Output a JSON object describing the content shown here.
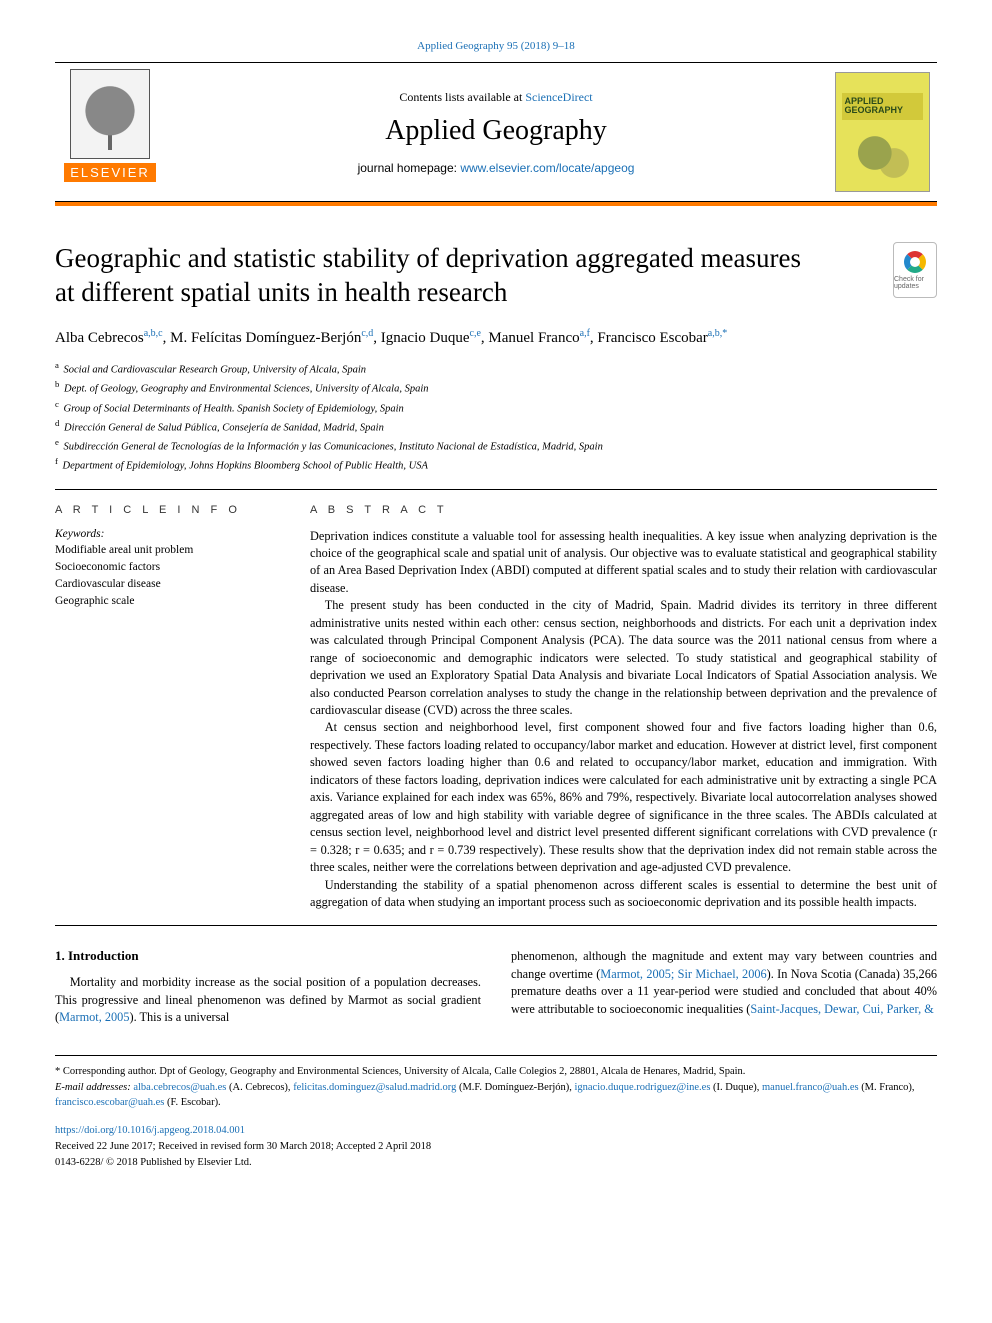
{
  "top": {
    "citation_link_text": "Applied Geography 95 (2018) 9–18",
    "contents_prefix": "Contents lists available at ",
    "contents_link": "ScienceDirect",
    "journal_name": "Applied Geography",
    "homepage_prefix": "journal homepage: ",
    "homepage_link": "www.elsevier.com/locate/apgeog",
    "publisher_word": "ELSEVIER",
    "cover_line1": "APPLIED",
    "cover_line2": "GEOGRAPHY",
    "updates_text": "Check for updates"
  },
  "article": {
    "title": "Geographic and statistic stability of deprivation aggregated measures at different spatial units in health research",
    "authors_html_parts": {
      "a1_name": "Alba Cebrecos",
      "a1_aff": "a,b,c",
      "a2_name": "M. Felícitas Domínguez-Berjón",
      "a2_aff": "c,d",
      "a3_name": "Ignacio Duque",
      "a3_aff": "c,e",
      "a4_name": "Manuel Franco",
      "a4_aff": "a,f",
      "a5_name": "Francisco Escobar",
      "a5_aff": "a,b,*"
    },
    "affiliations": [
      {
        "key": "a",
        "text": "Social and Cardiovascular Research Group, University of Alcala, Spain"
      },
      {
        "key": "b",
        "text": "Dept. of Geology, Geography and Environmental Sciences, University of Alcala, Spain"
      },
      {
        "key": "c",
        "text": "Group of Social Determinants of Health. Spanish Society of Epidemiology, Spain"
      },
      {
        "key": "d",
        "text": "Dirección General de Salud Pública, Consejería de Sanidad, Madrid, Spain"
      },
      {
        "key": "e",
        "text": "Subdirección General de Tecnologías de la Información y las Comunicaciones, Instituto Nacional de Estadística, Madrid, Spain"
      },
      {
        "key": "f",
        "text": "Department of Epidemiology, Johns Hopkins Bloomberg School of Public Health, USA"
      }
    ]
  },
  "sections": {
    "article_info_head": "A R T I C L E  I N F O",
    "abstract_head": "A B S T R A C T",
    "keywords_label": "Keywords:",
    "keywords": [
      "Modifiable areal unit problem",
      "Socioeconomic factors",
      "Cardiovascular disease",
      "Geographic scale"
    ],
    "abstract_paragraphs": [
      "Deprivation indices constitute a valuable tool for assessing health inequalities. A key issue when analyzing deprivation is the choice of the geographical scale and spatial unit of analysis. Our objective was to evaluate statistical and geographical stability of an Area Based Deprivation Index (ABDI) computed at different spatial scales and to study their relation with cardiovascular disease.",
      "The present study has been conducted in the city of Madrid, Spain. Madrid divides its territory in three different administrative units nested within each other: census section, neighborhoods and districts. For each unit a deprivation index was calculated through Principal Component Analysis (PCA). The data source was the 2011 national census from where a range of socioeconomic and demographic indicators were selected. To study statistical and geographical stability of deprivation we used an Exploratory Spatial Data Analysis and bivariate Local Indicators of Spatial Association analysis. We also conducted Pearson correlation analyses to study the change in the relationship between deprivation and the prevalence of cardiovascular disease (CVD) across the three scales.",
      "At census section and neighborhood level, first component showed four and five factors loading higher than 0.6, respectively. These factors loading related to occupancy/labor market and education. However at district level, first component showed seven factors loading higher than 0.6 and related to occupancy/labor market, education and immigration. With indicators of these factors loading, deprivation indices were calculated for each administrative unit by extracting a single PCA axis. Variance explained for each index was 65%, 86% and 79%, respectively. Bivariate local autocorrelation analyses showed aggregated areas of low and high stability with variable degree of significance in the three scales. The ABDIs calculated at census section level, neighborhood level and district level presented different significant correlations with CVD prevalence (r = 0.328; r = 0.635; and r = 0.739 respectively). These results show that the deprivation index did not remain stable across the three scales, neither were the correlations between deprivation and age-adjusted CVD prevalence.",
      "Understanding the stability of a spatial phenomenon across different scales is essential to determine the best unit of aggregation of data when studying an important process such as socioeconomic deprivation and its possible health impacts."
    ]
  },
  "body": {
    "intro_heading": "1. Introduction",
    "left_p": "Mortality and morbidity increase as the social position of a population decreases. This progressive and lineal phenomenon was defined by Marmot as social gradient (",
    "left_cite": "Marmot, 2005",
    "left_p_tail": "). This is a universal",
    "right_p_pre": "phenomenon, although the magnitude and extent may vary between countries and change overtime (",
    "right_cite1": "Marmot, 2005; Sir Michael, 2006",
    "right_p_mid": "). In Nova Scotia (Canada) 35,266 premature deaths over a 11 year-period were studied and concluded that about 40% were attributable to socioeconomic inequalities (",
    "right_cite2": "Saint-Jacques, Dewar, Cui, Parker, &"
  },
  "footnotes": {
    "corr": "* Corresponding author. Dpt of Geology, Geography and Environmental Sciences, University of Alcala, Calle Colegios 2, 28801, Alcala de Henares, Madrid, Spain.",
    "email_label": "E-mail addresses: ",
    "emails": [
      {
        "addr": "alba.cebrecos@uah.es",
        "who": " (A. Cebrecos), "
      },
      {
        "addr": "felicitas.dominguez@salud.madrid.org",
        "who": " (M.F. Domínguez-Berjón), "
      },
      {
        "addr": "ignacio.duque.rodriguez@ine.es",
        "who": " (I. Duque), "
      },
      {
        "addr": "manuel.franco@uah.es",
        "who": " (M. Franco), "
      },
      {
        "addr": "francisco.escobar@uah.es",
        "who": " (F. Escobar)."
      }
    ]
  },
  "pubinfo": {
    "doi": "https://doi.org/10.1016/j.apgeog.2018.04.001",
    "received": "Received 22 June 2017; Received in revised form 30 March 2018; Accepted 2 April 2018",
    "issn": "0143-6228/ © 2018 Published by Elsevier Ltd."
  },
  "colors": {
    "link": "#1a6fb5",
    "orange": "#ff7a00"
  }
}
